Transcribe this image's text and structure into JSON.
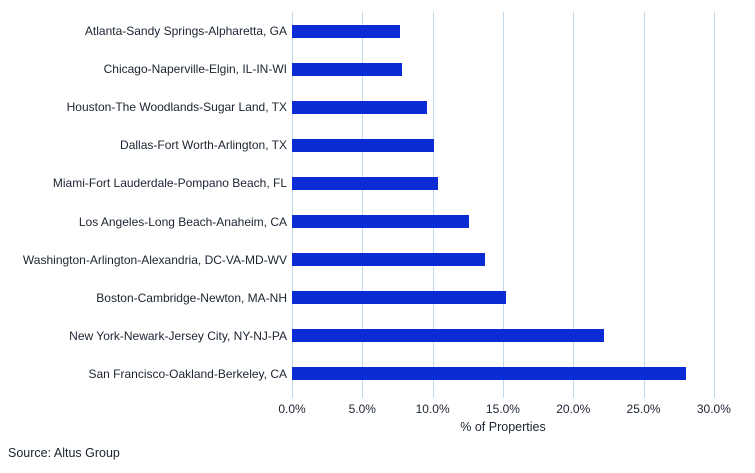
{
  "source_note": "Source: Altus Group",
  "colors": {
    "bar": "#0b2cd5",
    "gridline": "#bddbea",
    "text": "#1b2430",
    "background": "#ffffff"
  },
  "chart_data": {
    "type": "bar",
    "orientation": "horizontal",
    "title": "",
    "xlabel": "% of Properties",
    "ylabel": "",
    "grid": true,
    "legend": "none",
    "xlim": [
      0,
      32
    ],
    "x_ticks": [
      "0.0%",
      "5.0%",
      "10.0%",
      "15.0%",
      "20.0%",
      "25.0%",
      "30.0%"
    ],
    "x_tick_values": [
      0,
      5,
      10,
      15,
      20,
      25,
      30
    ],
    "categories": [
      "Atlanta-Sandy Springs-Alpharetta, GA",
      "Chicago-Naperville-Elgin, IL-IN-WI",
      "Houston-The Woodlands-Sugar Land, TX",
      "Dallas-Fort Worth-Arlington, TX",
      "Miami-Fort Lauderdale-Pompano Beach, FL",
      "Los Angeles-Long Beach-Anaheim, CA",
      "Washington-Arlington-Alexandria, DC-VA-MD-WV",
      "Boston-Cambridge-Newton, MA-NH",
      "New York-Newark-Jersey City, NY-NJ-PA",
      "San Francisco-Oakland-Berkeley, CA"
    ],
    "values": [
      7.7,
      7.8,
      9.6,
      10.1,
      10.4,
      12.6,
      13.7,
      15.2,
      22.2,
      28.0
    ],
    "unit": "%"
  }
}
